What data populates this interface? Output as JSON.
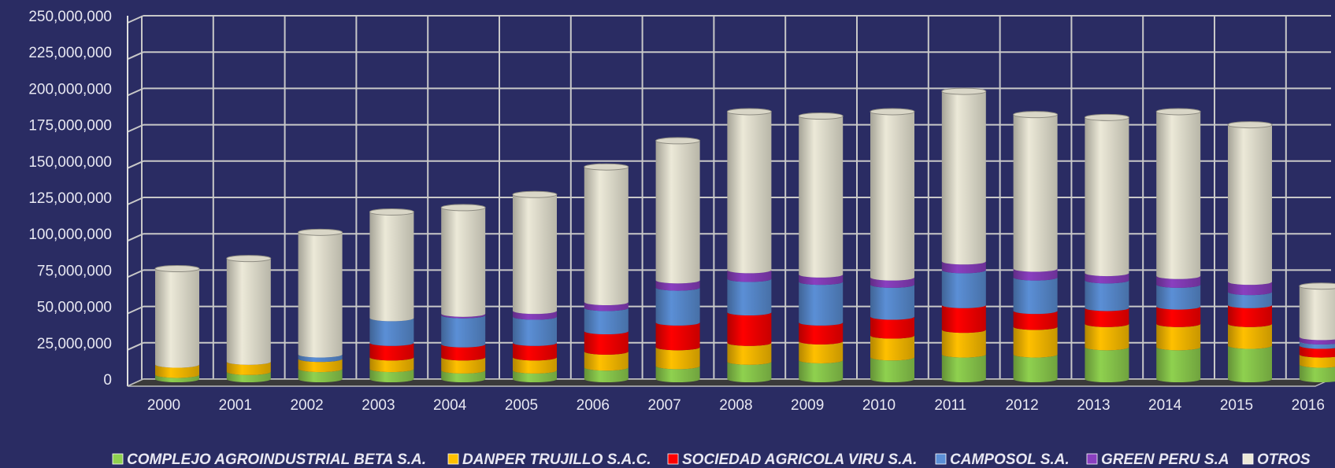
{
  "chart_data": {
    "type": "bar",
    "stacked": true,
    "title": "",
    "xlabel": "",
    "ylabel": "",
    "ylim": [
      0,
      250000000
    ],
    "y_ticks": [
      "0",
      "25,000,000",
      "50,000,000",
      "75,000,000",
      "100,000,000",
      "125,000,000",
      "150,000,000",
      "175,000,000",
      "200,000,000",
      "225,000,000",
      "250,000,000"
    ],
    "y_tick_values": [
      0,
      25000000,
      50000000,
      75000000,
      100000000,
      125000000,
      150000000,
      175000000,
      200000000,
      225000000,
      250000000
    ],
    "grid": true,
    "legend_position": "bottom",
    "categories": [
      "2000",
      "2001",
      "2002",
      "2003",
      "2004",
      "2005",
      "2006",
      "2007",
      "2008",
      "2009",
      "2010",
      "2011",
      "2012",
      "2013",
      "2014",
      "2015",
      "2016"
    ],
    "series": [
      {
        "name": "COMPLEJO AGROINDUSTRIAL BETA S.A.",
        "color": "#8fd14f",
        "values": [
          3000000,
          5000000,
          7000000,
          7000000,
          6000000,
          6000000,
          8000000,
          9000000,
          12000000,
          13000000,
          15000000,
          17000000,
          17000000,
          22000000,
          22000000,
          23000000,
          10000000
        ]
      },
      {
        "name": "DANPER TRUJILLO S.A.C.",
        "color": "#ffc000",
        "values": [
          7000000,
          7000000,
          7000000,
          8000000,
          9000000,
          9000000,
          11000000,
          13000000,
          13000000,
          13000000,
          15000000,
          17000000,
          19000000,
          16000000,
          16000000,
          15000000,
          7000000
        ]
      },
      {
        "name": "SOCIEDAD AGRICOLA VIRU S.A.",
        "color": "#ff0000",
        "values": [
          0,
          0,
          0,
          10000000,
          9000000,
          10000000,
          14000000,
          17000000,
          21000000,
          13000000,
          13000000,
          17000000,
          11000000,
          11000000,
          12000000,
          13000000,
          6000000
        ]
      },
      {
        "name": "CAMPOSOL S.A.",
        "color": "#5b8fd6",
        "values": [
          0,
          0,
          3000000,
          17000000,
          20000000,
          18000000,
          16000000,
          24000000,
          23000000,
          28000000,
          22000000,
          24000000,
          23000000,
          19000000,
          15000000,
          9000000,
          3000000
        ]
      },
      {
        "name": "GREEN PERU S.A",
        "color": "#8a3fc0",
        "values": [
          0,
          0,
          0,
          0,
          1000000,
          4000000,
          4000000,
          5000000,
          6000000,
          5000000,
          5000000,
          6000000,
          6000000,
          5000000,
          6000000,
          7000000,
          3000000
        ]
      },
      {
        "name": "OTROS",
        "color": "#ece9d8",
        "values": [
          66000000,
          71000000,
          84000000,
          73000000,
          73000000,
          80000000,
          93000000,
          96000000,
          109000000,
          109000000,
          114000000,
          117000000,
          106000000,
          107000000,
          113000000,
          108000000,
          35000000
        ]
      }
    ]
  }
}
